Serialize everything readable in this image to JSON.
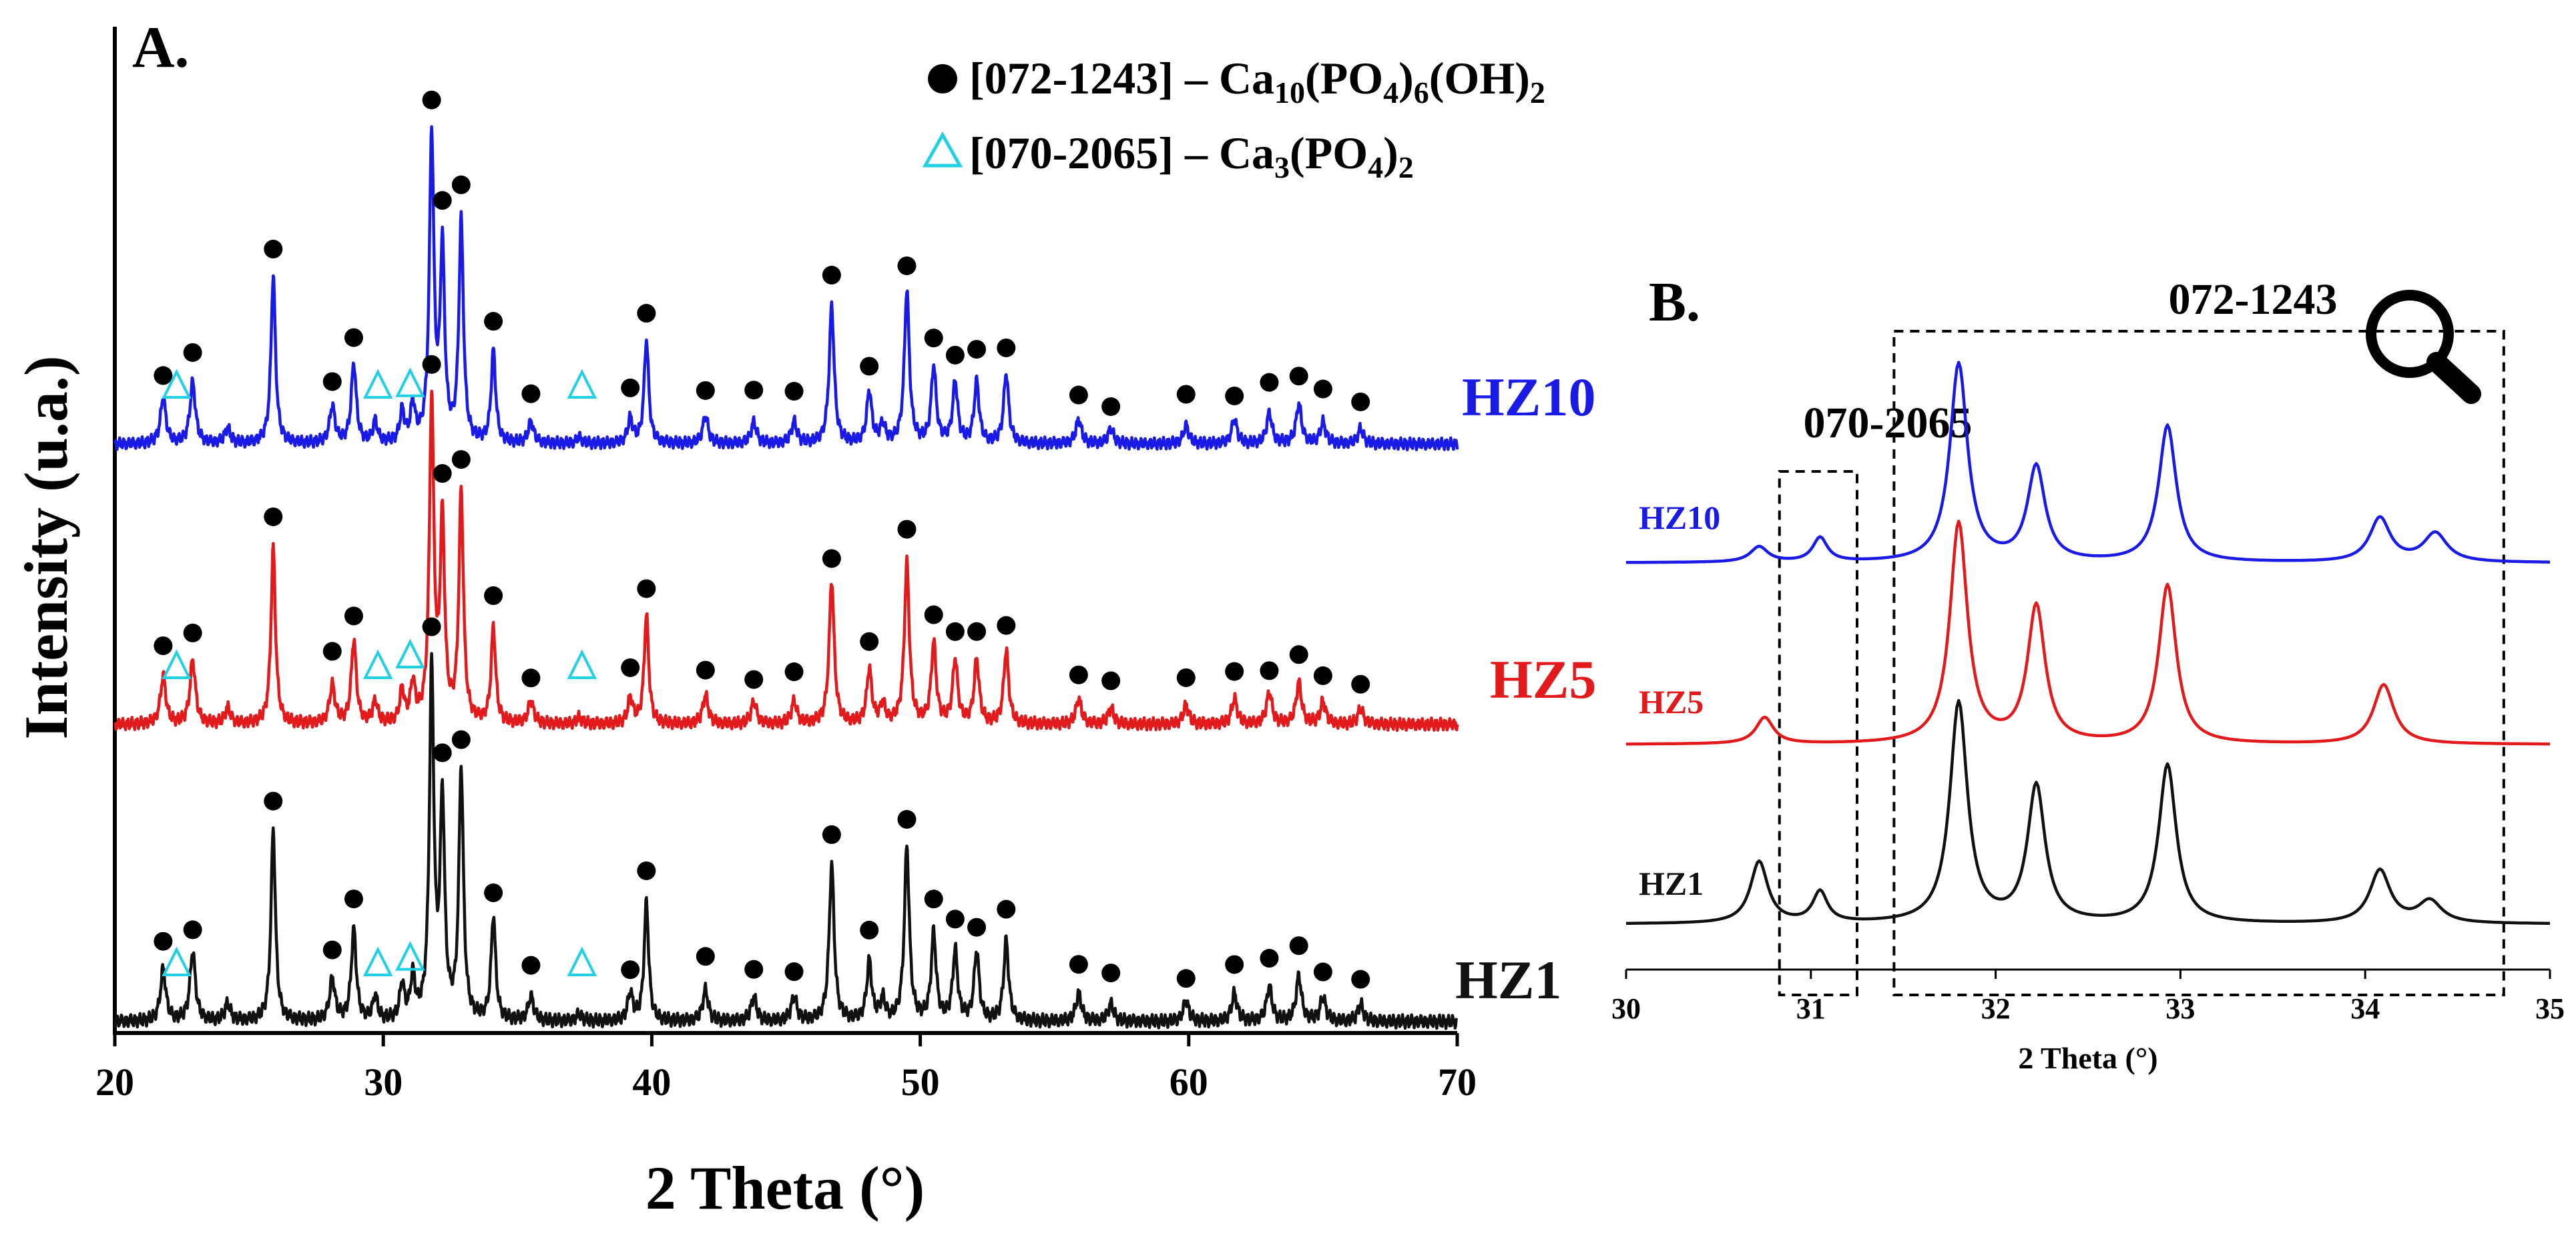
{
  "panels": {
    "a": {
      "label": "A.",
      "type": "line",
      "xlabel": "2 Theta (°)",
      "ylabel": "Intensity (u.a.)",
      "xlim": [
        20,
        70
      ],
      "xticks": [
        "20",
        "30",
        "40",
        "50",
        "60",
        "70"
      ],
      "legend": {
        "position": "top-right",
        "entries": [
          {
            "marker": "filled-circle",
            "code": "[072-1243]",
            "phase": "Ca10(PO4)6(OH)2",
            "phase_parts": [
              [
                "Ca",
                ""
              ],
              [
                "10",
                "sub"
              ],
              [
                "(PO",
                ""
              ],
              [
                "4",
                "sub"
              ],
              [
                ")",
                ""
              ],
              [
                "6",
                "sub"
              ],
              [
                "(OH)",
                ""
              ],
              [
                "2",
                "sub"
              ]
            ]
          },
          {
            "marker": "open-triangle",
            "code": "[070-2065]",
            "phase": "Ca3(PO4)2",
            "phase_parts": [
              [
                "Ca",
                ""
              ],
              [
                "3",
                "sub"
              ],
              [
                "(PO",
                ""
              ],
              [
                "4",
                "sub"
              ],
              [
                ")",
                ""
              ],
              [
                "2",
                "sub"
              ]
            ]
          }
        ]
      }
    },
    "b": {
      "label": "B.",
      "type": "line",
      "xlabel": "2 Theta (°)",
      "xlim": [
        30,
        35
      ],
      "xticks": [
        "30",
        "31",
        "32",
        "33",
        "34",
        "35"
      ],
      "region_labels": [
        {
          "text": "070-2065",
          "from": 30.83,
          "to": 31.25
        },
        {
          "text": "072-1243",
          "from": 31.45,
          "to": 34.75
        }
      ],
      "magnifier": "magnifier-icon"
    }
  },
  "chart_data": [
    {
      "type": "line",
      "title": "A.",
      "xlabel": "2 Theta (°)",
      "ylabel": "Intensity (u.a.)",
      "xlim": [
        20,
        70
      ],
      "series": [
        {
          "name": "HZ1",
          "color": "#111111",
          "offset": 0
        },
        {
          "name": "HZ5",
          "color": "#e31a1c",
          "offset": 1
        },
        {
          "name": "HZ10",
          "color": "#1a1ae6",
          "offset": 2
        }
      ],
      "peaks": [
        {
          "pos": 21.8,
          "h": 0.15,
          "w": 0.12
        },
        {
          "pos": 22.9,
          "h": 0.2,
          "w": 0.12
        },
        {
          "pos": 24.2,
          "h": 0.05,
          "w": 0.12
        },
        {
          "pos": 25.9,
          "h": 0.55,
          "w": 0.1
        },
        {
          "pos": 28.1,
          "h": 0.12,
          "w": 0.12
        },
        {
          "pos": 28.9,
          "h": 0.26,
          "w": 0.11
        },
        {
          "pos": 29.7,
          "h": 0.07,
          "w": 0.1
        },
        {
          "pos": 30.7,
          "h": 0.1,
          "w": 0.1
        },
        {
          "pos": 31.1,
          "h": 0.12,
          "w": 0.1
        },
        {
          "pos": 31.8,
          "h": 1.0,
          "w": 0.1
        },
        {
          "pos": 32.2,
          "h": 0.62,
          "w": 0.1
        },
        {
          "pos": 32.9,
          "h": 0.72,
          "w": 0.1
        },
        {
          "pos": 34.1,
          "h": 0.3,
          "w": 0.1
        },
        {
          "pos": 35.5,
          "h": 0.07,
          "w": 0.12
        },
        {
          "pos": 37.3,
          "h": 0.02,
          "w": 0.12
        },
        {
          "pos": 39.2,
          "h": 0.08,
          "w": 0.11
        },
        {
          "pos": 39.8,
          "h": 0.34,
          "w": 0.1
        },
        {
          "pos": 42.0,
          "h": 0.09,
          "w": 0.12
        },
        {
          "pos": 43.8,
          "h": 0.07,
          "w": 0.12
        },
        {
          "pos": 45.3,
          "h": 0.07,
          "w": 0.12
        },
        {
          "pos": 46.7,
          "h": 0.45,
          "w": 0.11
        },
        {
          "pos": 48.1,
          "h": 0.17,
          "w": 0.11
        },
        {
          "pos": 48.6,
          "h": 0.06,
          "w": 0.11
        },
        {
          "pos": 49.5,
          "h": 0.5,
          "w": 0.11
        },
        {
          "pos": 50.5,
          "h": 0.25,
          "w": 0.11
        },
        {
          "pos": 51.3,
          "h": 0.2,
          "w": 0.11
        },
        {
          "pos": 52.1,
          "h": 0.2,
          "w": 0.11
        },
        {
          "pos": 53.2,
          "h": 0.23,
          "w": 0.11
        },
        {
          "pos": 55.9,
          "h": 0.08,
          "w": 0.12
        },
        {
          "pos": 57.1,
          "h": 0.05,
          "w": 0.12
        },
        {
          "pos": 59.9,
          "h": 0.06,
          "w": 0.12
        },
        {
          "pos": 61.7,
          "h": 0.08,
          "w": 0.12
        },
        {
          "pos": 63.0,
          "h": 0.1,
          "w": 0.12
        },
        {
          "pos": 64.1,
          "h": 0.13,
          "w": 0.12
        },
        {
          "pos": 65.0,
          "h": 0.07,
          "w": 0.12
        },
        {
          "pos": 66.4,
          "h": 0.05,
          "w": 0.12
        }
      ],
      "hap_markers": [
        21.8,
        22.9,
        25.9,
        28.1,
        28.9,
        31.8,
        32.2,
        32.9,
        34.1,
        35.5,
        39.2,
        39.8,
        42.0,
        43.8,
        45.3,
        46.7,
        48.1,
        49.5,
        50.5,
        51.3,
        52.1,
        53.2,
        55.9,
        57.1,
        59.9,
        61.7,
        63.0,
        64.1,
        65.0,
        66.4
      ],
      "tcp_markers": [
        22.3,
        29.8,
        31.0,
        37.4
      ]
    },
    {
      "type": "line",
      "title": "B.",
      "xlabel": "2 Theta (°)",
      "xlim": [
        30,
        35
      ],
      "series": [
        {
          "name": "HZ1",
          "color": "#111111",
          "offset": 0,
          "peaks": [
            [
              30.72,
              0.28,
              0.06
            ],
            [
              31.05,
              0.14,
              0.05
            ],
            [
              31.8,
              1.0,
              0.06
            ],
            [
              32.22,
              0.62,
              0.06
            ],
            [
              32.93,
              0.72,
              0.06
            ],
            [
              34.08,
              0.24,
              0.07
            ],
            [
              34.35,
              0.1,
              0.08
            ]
          ]
        },
        {
          "name": "HZ5",
          "color": "#e31a1c",
          "offset": 1,
          "peaks": [
            [
              30.75,
              0.12,
              0.06
            ],
            [
              31.8,
              1.0,
              0.06
            ],
            [
              32.22,
              0.62,
              0.06
            ],
            [
              32.93,
              0.72,
              0.06
            ],
            [
              34.1,
              0.27,
              0.07
            ]
          ]
        },
        {
          "name": "HZ10",
          "color": "#1a1ae6",
          "offset": 2,
          "peaks": [
            [
              30.72,
              0.07,
              0.06
            ],
            [
              31.05,
              0.11,
              0.05
            ],
            [
              31.8,
              0.9,
              0.06
            ],
            [
              32.22,
              0.43,
              0.06
            ],
            [
              32.93,
              0.62,
              0.06
            ],
            [
              34.08,
              0.2,
              0.07
            ],
            [
              34.38,
              0.13,
              0.08
            ]
          ]
        }
      ]
    }
  ]
}
